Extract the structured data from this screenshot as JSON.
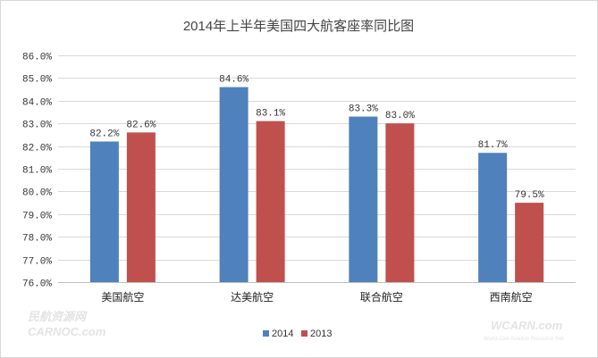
{
  "chart_data": {
    "type": "bar",
    "title": "2014年上半年美国四大航客座率同比图",
    "categories": [
      "美国航空",
      "达美航空",
      "联合航空",
      "西南航空"
    ],
    "series": [
      {
        "name": "2014",
        "color": "#4f81bd",
        "values": [
          82.2,
          84.6,
          83.3,
          81.7
        ]
      },
      {
        "name": "2013",
        "color": "#c0504d",
        "values": [
          82.6,
          83.1,
          83.0,
          79.5
        ]
      }
    ],
    "ylim": [
      76.0,
      86.0
    ],
    "yticks": [
      "76.0%",
      "77.0%",
      "78.0%",
      "79.0%",
      "80.0%",
      "81.0%",
      "82.0%",
      "83.0%",
      "84.0%",
      "85.0%",
      "86.0%"
    ],
    "data_labels": [
      [
        "82.2%",
        "84.6%",
        "83.3%",
        "81.7%"
      ],
      [
        "82.6%",
        "83.1%",
        "83.0%",
        "79.5%"
      ]
    ],
    "grid": true,
    "legend": "bottom-center",
    "xlabel": "",
    "ylabel": ""
  },
  "watermarks": {
    "left_cn": "民航资源网",
    "left_en": "CARNOC.com",
    "right_en": "WCARN.com",
    "right_sub": "World Civil Aviation Resource Net"
  }
}
